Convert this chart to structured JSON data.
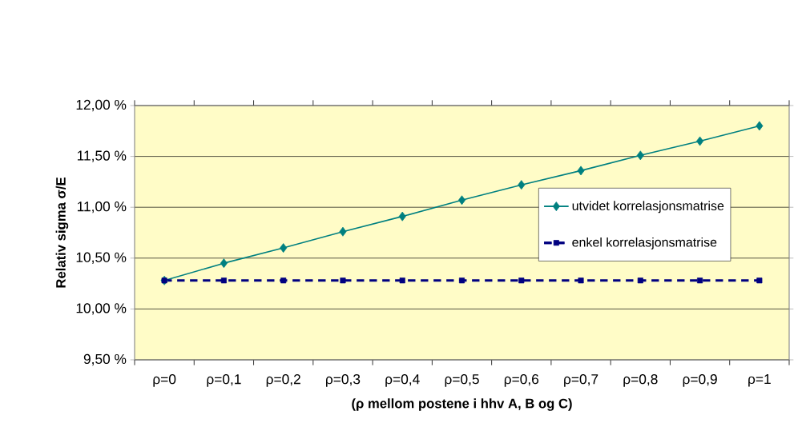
{
  "chart_data": {
    "type": "line",
    "xlabel": "(ρ mellom postene i hhv A, B og C)",
    "ylabel": "Relativ sigma σ/E",
    "categories": [
      "ρ=0",
      "ρ=0,1",
      "ρ=0,2",
      "ρ=0,3",
      "ρ=0,4",
      "ρ=0,5",
      "ρ=0,6",
      "ρ=0,7",
      "ρ=0,8",
      "ρ=0,9",
      "ρ=1"
    ],
    "series": [
      {
        "name": "utvidet korrelasjonsmatrise",
        "color": "#008080",
        "marker": "diamond",
        "line_style": "solid",
        "values": [
          10.28,
          10.45,
          10.6,
          10.76,
          10.91,
          11.07,
          11.22,
          11.36,
          11.51,
          11.65,
          11.8
        ]
      },
      {
        "name": "enkel korrelasjonsmatrise",
        "color": "#000080",
        "marker": "square",
        "line_style": "dashed",
        "values": [
          10.28,
          10.28,
          10.28,
          10.28,
          10.28,
          10.28,
          10.28,
          10.28,
          10.28,
          10.28,
          10.28
        ]
      }
    ],
    "ylim": [
      9.5,
      12.0
    ],
    "yticks": [
      {
        "value": 9.5,
        "label": "9,50 %"
      },
      {
        "value": 10.0,
        "label": "10,00 %"
      },
      {
        "value": 10.5,
        "label": "10,50 %"
      },
      {
        "value": 11.0,
        "label": "11,00 %"
      },
      {
        "value": 11.5,
        "label": "11,50 %"
      },
      {
        "value": 12.0,
        "label": "12,00 %"
      }
    ],
    "grid": "y",
    "legend": "right"
  }
}
